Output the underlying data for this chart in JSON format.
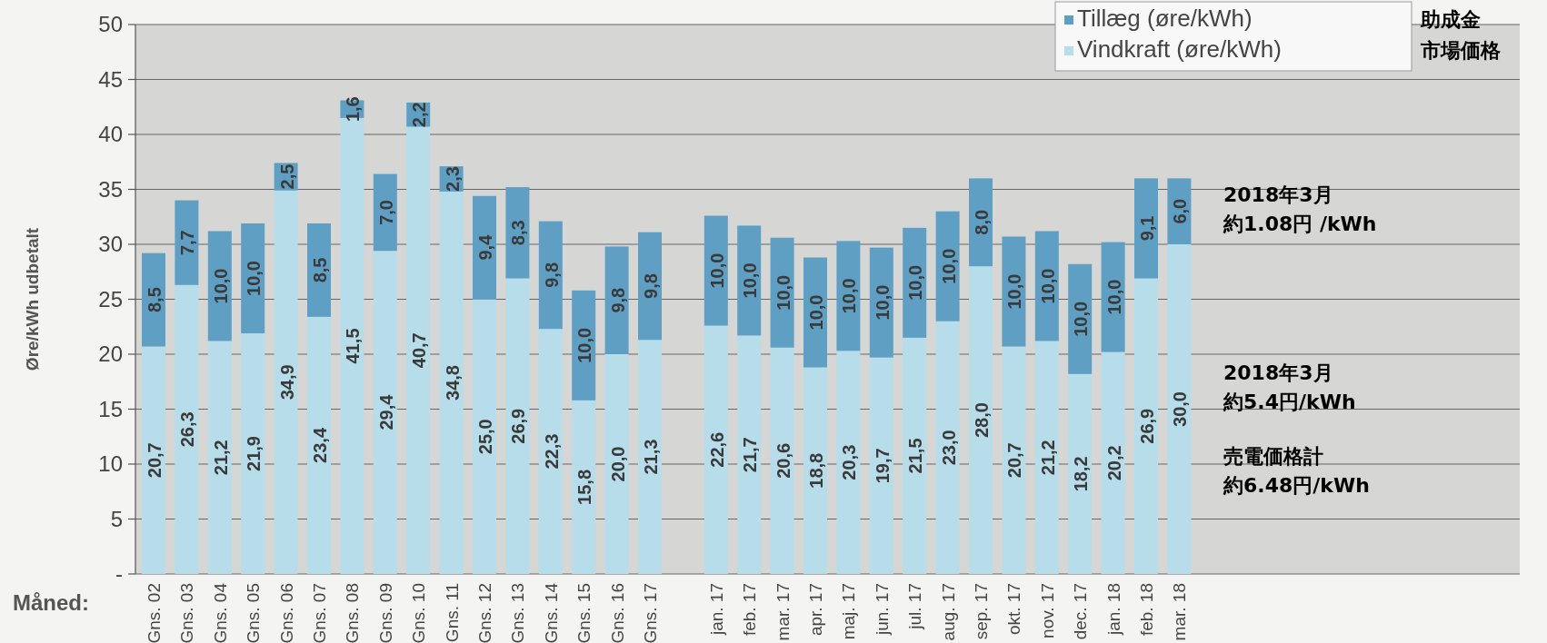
{
  "chart_data": {
    "type": "bar",
    "stacked": true,
    "ylabel": "Øre/kWh udbetalt",
    "xlabel": "Måned:",
    "categories": [
      "Gns. 02",
      "Gns. 03",
      "Gns. 04",
      "Gns. 05",
      "Gns. 06",
      "Gns. 07",
      "Gns. 08",
      "Gns. 09",
      "Gns. 10",
      "Gns. 11",
      "Gns. 12",
      "Gns. 13",
      "Gns. 14",
      "Gns. 15",
      "Gns. 16",
      "Gns. 17",
      null,
      "jan. 17",
      "feb. 17",
      "mar. 17",
      "apr. 17",
      "maj. 17",
      "jun. 17",
      "jul. 17",
      "aug. 17",
      "sep. 17",
      "okt. 17",
      "nov. 17",
      "dec. 17",
      "jan. 18",
      "feb. 18",
      "mar. 18"
    ],
    "series": [
      {
        "name": "Vindkraft (øre/kWh)",
        "color": "#b7dcea",
        "values": [
          20.7,
          26.3,
          21.2,
          21.9,
          34.9,
          23.4,
          41.5,
          29.4,
          40.7,
          34.8,
          25.0,
          26.9,
          22.3,
          15.8,
          20.0,
          21.3,
          null,
          22.6,
          21.7,
          20.6,
          18.8,
          20.3,
          19.7,
          21.5,
          23.0,
          28.0,
          20.7,
          21.2,
          18.2,
          20.2,
          26.9,
          30.0
        ],
        "value_labels": [
          "20,7",
          "26,3",
          "21,2",
          "21,9",
          "34,9",
          "23,4",
          "41,5",
          "29,4",
          "40,7",
          "34,8",
          "25,0",
          "26,9",
          "22,3",
          "15,8",
          "20,0",
          "21,3",
          null,
          "22,6",
          "21,7",
          "20,6",
          "18,8",
          "20,3",
          "19,7",
          "21,5",
          "23,0",
          "28,0",
          "20,7",
          "21,2",
          "18,2",
          "20,2",
          "26,9",
          "30,0"
        ]
      },
      {
        "name": "Tillæg (øre/kWh)",
        "color": "#5f9fc4",
        "values": [
          8.5,
          7.7,
          10.0,
          10.0,
          2.5,
          8.5,
          1.6,
          7.0,
          2.2,
          2.3,
          9.4,
          8.3,
          9.8,
          10.0,
          9.8,
          9.8,
          null,
          10.0,
          10.0,
          10.0,
          10.0,
          10.0,
          10.0,
          10.0,
          10.0,
          8.0,
          10.0,
          10.0,
          10.0,
          10.0,
          9.1,
          6.0
        ],
        "value_labels": [
          "8,5",
          "7,7",
          "10,0",
          "10,0",
          "2,5",
          "8,5",
          "1,6",
          "7,0",
          "2,2",
          "2,3",
          "9,4",
          "8,3",
          "9,8",
          "10,0",
          "9,8",
          "9,8",
          null,
          "10,0",
          "10,0",
          "10,0",
          "10,0",
          "10,0",
          "10,0",
          "10,0",
          "10,0",
          "8,0",
          "10,0",
          "10,0",
          "10,0",
          "10,0",
          "9,1",
          "6,0"
        ]
      }
    ],
    "ylim": [
      0,
      50
    ],
    "yticks": [
      {
        "value": 0,
        "label": "-"
      },
      5,
      10,
      15,
      20,
      25,
      30,
      35,
      40,
      45,
      50
    ],
    "grid": "y",
    "legend": "top right",
    "annotations": [
      "助成金",
      "市場価格",
      "2018年3月",
      "約1.08円 /kWh",
      "2018年3月",
      "約5.4円/kWh",
      "売電価格計",
      "約6.48円/kWh"
    ]
  }
}
